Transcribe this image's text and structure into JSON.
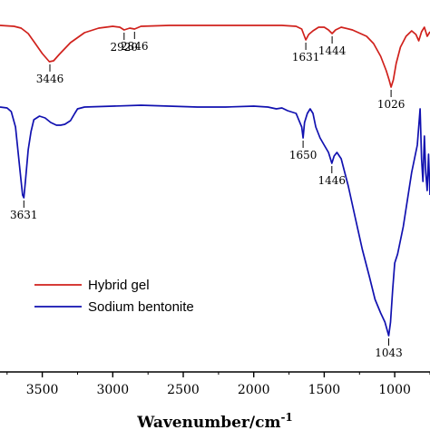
{
  "chart_data": {
    "type": "line",
    "xlabel": "Wavenumber/cm",
    "xlabel_superscript": "-1",
    "x_reversed": true,
    "xlim": [
      3800,
      750
    ],
    "x_ticks": [
      3500,
      3000,
      2500,
      2000,
      1500,
      1000
    ],
    "y_ticks_shown": false,
    "legend_position": "lower-left",
    "series": [
      {
        "name": "Hybrid gel",
        "color": "#d0211c",
        "points": [
          [
            3800,
            28
          ],
          [
            3700,
            29
          ],
          [
            3650,
            31
          ],
          [
            3600,
            37
          ],
          [
            3550,
            48
          ],
          [
            3500,
            59
          ],
          [
            3450,
            68
          ],
          [
            3420,
            67
          ],
          [
            3380,
            60
          ],
          [
            3300,
            47
          ],
          [
            3200,
            36
          ],
          [
            3100,
            31
          ],
          [
            3000,
            29
          ],
          [
            2950,
            30
          ],
          [
            2920,
            33
          ],
          [
            2880,
            31
          ],
          [
            2846,
            32
          ],
          [
            2800,
            29
          ],
          [
            2600,
            28
          ],
          [
            2400,
            28
          ],
          [
            2200,
            28
          ],
          [
            2000,
            28
          ],
          [
            1800,
            28
          ],
          [
            1700,
            29
          ],
          [
            1660,
            32
          ],
          [
            1631,
            44
          ],
          [
            1610,
            38
          ],
          [
            1580,
            34
          ],
          [
            1540,
            30
          ],
          [
            1500,
            30
          ],
          [
            1470,
            33
          ],
          [
            1444,
            37
          ],
          [
            1420,
            33
          ],
          [
            1380,
            30
          ],
          [
            1300,
            33
          ],
          [
            1200,
            40
          ],
          [
            1150,
            48
          ],
          [
            1100,
            62
          ],
          [
            1060,
            78
          ],
          [
            1040,
            88
          ],
          [
            1026,
            96
          ],
          [
            1010,
            88
          ],
          [
            990,
            70
          ],
          [
            960,
            52
          ],
          [
            920,
            40
          ],
          [
            880,
            34
          ],
          [
            850,
            38
          ],
          [
            830,
            45
          ],
          [
            810,
            35
          ],
          [
            790,
            30
          ],
          [
            770,
            40
          ],
          [
            750,
            35
          ]
        ]
      },
      {
        "name": "Sodium bentonite",
        "color": "#1111b0",
        "points": [
          [
            3800,
            118
          ],
          [
            3750,
            119
          ],
          [
            3720,
            123
          ],
          [
            3690,
            140
          ],
          [
            3670,
            170
          ],
          [
            3650,
            200
          ],
          [
            3640,
            215
          ],
          [
            3631,
            218
          ],
          [
            3620,
            200
          ],
          [
            3600,
            165
          ],
          [
            3580,
            145
          ],
          [
            3560,
            132
          ],
          [
            3520,
            128
          ],
          [
            3480,
            130
          ],
          [
            3440,
            135
          ],
          [
            3400,
            138
          ],
          [
            3370,
            138
          ],
          [
            3340,
            137
          ],
          [
            3300,
            133
          ],
          [
            3270,
            125
          ],
          [
            3250,
            120
          ],
          [
            3200,
            118
          ],
          [
            3000,
            117
          ],
          [
            2800,
            116
          ],
          [
            2600,
            117
          ],
          [
            2400,
            118
          ],
          [
            2200,
            118
          ],
          [
            2000,
            117
          ],
          [
            1900,
            118
          ],
          [
            1840,
            120
          ],
          [
            1800,
            119
          ],
          [
            1760,
            122
          ],
          [
            1700,
            125
          ],
          [
            1660,
            140
          ],
          [
            1650,
            152
          ],
          [
            1640,
            135
          ],
          [
            1620,
            125
          ],
          [
            1600,
            120
          ],
          [
            1580,
            125
          ],
          [
            1560,
            140
          ],
          [
            1530,
            152
          ],
          [
            1500,
            160
          ],
          [
            1470,
            168
          ],
          [
            1446,
            180
          ],
          [
            1430,
            172
          ],
          [
            1410,
            168
          ],
          [
            1380,
            175
          ],
          [
            1330,
            205
          ],
          [
            1280,
            240
          ],
          [
            1230,
            275
          ],
          [
            1180,
            305
          ],
          [
            1140,
            330
          ],
          [
            1100,
            345
          ],
          [
            1070,
            355
          ],
          [
            1043,
            370
          ],
          [
            1030,
            355
          ],
          [
            1015,
            320
          ],
          [
            1000,
            290
          ],
          [
            980,
            280
          ],
          [
            960,
            265
          ],
          [
            940,
            250
          ],
          [
            920,
            230
          ],
          [
            900,
            210
          ],
          [
            880,
            190
          ],
          [
            860,
            175
          ],
          [
            840,
            160
          ],
          [
            820,
            120
          ],
          [
            810,
            175
          ],
          [
            800,
            200
          ],
          [
            790,
            150
          ],
          [
            780,
            190
          ],
          [
            770,
            210
          ],
          [
            760,
            170
          ],
          [
            750,
            215
          ]
        ]
      }
    ],
    "annotations": [
      {
        "text": "3446",
        "series": "Hybrid gel",
        "x": 3446
      },
      {
        "text": "2920",
        "series": "Hybrid gel",
        "x": 2920
      },
      {
        "text": "2846",
        "series": "Hybrid gel",
        "x": 2846
      },
      {
        "text": "1631",
        "series": "Hybrid gel",
        "x": 1631
      },
      {
        "text": "1444",
        "series": "Hybrid gel",
        "x": 1444
      },
      {
        "text": "1026",
        "series": "Hybrid gel",
        "x": 1026
      },
      {
        "text": "3631",
        "series": "Sodium bentonite",
        "x": 3631
      },
      {
        "text": "1650",
        "series": "Sodium bentonite",
        "x": 1650
      },
      {
        "text": "1446",
        "series": "Sodium bentonite",
        "x": 1446
      },
      {
        "text": "1043",
        "series": "Sodium bentonite",
        "x": 1043
      }
    ]
  }
}
